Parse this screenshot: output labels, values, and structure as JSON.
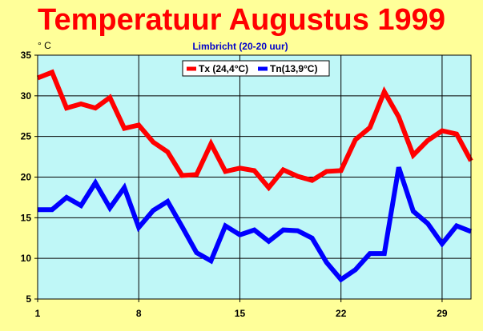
{
  "chart_data": {
    "type": "line",
    "title": "Temperatuur Augustus 1999",
    "subtitle": "Limbricht (20-20 uur)",
    "ylabel": "° C",
    "xlabel": "",
    "ylim": [
      5,
      35
    ],
    "xlim": [
      1,
      31
    ],
    "yticks": [
      5,
      10,
      15,
      20,
      25,
      30,
      35
    ],
    "xticks": [
      1,
      8,
      15,
      22,
      29
    ],
    "grid": true,
    "legend_placement": "top-center",
    "x": [
      1,
      2,
      3,
      4,
      5,
      6,
      7,
      8,
      9,
      10,
      11,
      12,
      13,
      14,
      15,
      16,
      17,
      18,
      19,
      20,
      21,
      22,
      23,
      24,
      25,
      26,
      27,
      28,
      29,
      30,
      31
    ],
    "series": [
      {
        "name": "Tx (24,4°C)",
        "color": "#ff0000",
        "values": [
          32.2,
          32.9,
          28.5,
          29.0,
          28.5,
          29.8,
          26.0,
          26.4,
          24.3,
          23.1,
          20.2,
          20.3,
          24.1,
          20.7,
          21.1,
          20.8,
          18.7,
          20.9,
          20.1,
          19.6,
          20.7,
          20.8,
          24.6,
          26.1,
          30.5,
          27.4,
          22.7,
          24.5,
          25.7,
          25.3,
          22.0
        ]
      },
      {
        "name": "Tn(13,9°C)",
        "color": "#0000ff",
        "values": [
          16.0,
          16.0,
          17.5,
          16.5,
          19.3,
          16.2,
          18.7,
          13.8,
          15.9,
          17.0,
          13.9,
          10.7,
          9.7,
          14.0,
          12.9,
          13.5,
          12.1,
          13.5,
          13.4,
          12.5,
          9.5,
          7.4,
          8.6,
          10.6,
          10.6,
          21.2,
          15.8,
          14.3,
          11.8,
          14.0,
          13.3
        ]
      }
    ]
  }
}
